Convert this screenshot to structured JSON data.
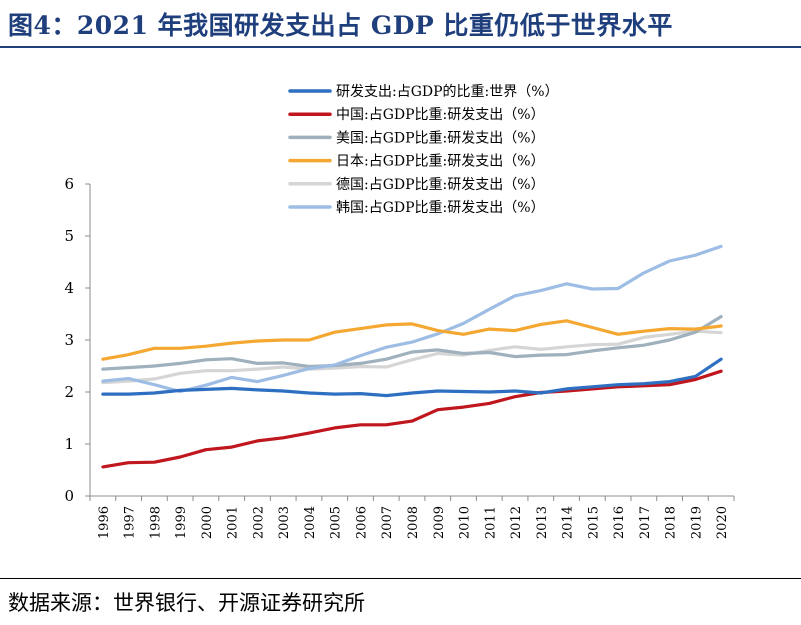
{
  "title": "图4：2021 年我国研发支出占 GDP 比重仍低于世界水平",
  "source": "数据来源：世界银行、开源证券研究所",
  "chart_data": {
    "type": "line",
    "x": [
      "1996",
      "1997",
      "1998",
      "1999",
      "2000",
      "2001",
      "2002",
      "2003",
      "2004",
      "2005",
      "2006",
      "2007",
      "2008",
      "2009",
      "2010",
      "2011",
      "2012",
      "2013",
      "2014",
      "2015",
      "2016",
      "2017",
      "2018",
      "2019",
      "2020"
    ],
    "ylim": [
      0,
      6
    ],
    "yticks": [
      "0",
      "1",
      "2",
      "3",
      "4",
      "5",
      "6"
    ],
    "grid": false,
    "legend_position": "top-center",
    "series": [
      {
        "name": "研发支出:占GDP的比重:世界（%）",
        "color": "#2e6fc2",
        "values": [
          1.96,
          1.96,
          1.98,
          2.03,
          2.05,
          2.07,
          2.04,
          2.02,
          1.98,
          1.96,
          1.97,
          1.93,
          1.98,
          2.02,
          2.01,
          2.0,
          2.02,
          1.98,
          2.06,
          2.1,
          2.14,
          2.16,
          2.2,
          2.3,
          2.63
        ]
      },
      {
        "name": "中国:占GDP比重:研发支出（%）",
        "color": "#c0161e",
        "values": [
          0.56,
          0.64,
          0.65,
          0.75,
          0.89,
          0.94,
          1.06,
          1.12,
          1.21,
          1.31,
          1.37,
          1.37,
          1.44,
          1.66,
          1.71,
          1.78,
          1.91,
          1.99,
          2.02,
          2.06,
          2.1,
          2.12,
          2.14,
          2.24,
          2.4
        ]
      },
      {
        "name": "美国:占GDP比重:研发支出（%）",
        "color": "#9eb1bd",
        "values": [
          2.44,
          2.47,
          2.5,
          2.55,
          2.62,
          2.64,
          2.55,
          2.56,
          2.49,
          2.51,
          2.55,
          2.63,
          2.77,
          2.81,
          2.74,
          2.76,
          2.68,
          2.71,
          2.72,
          2.79,
          2.85,
          2.9,
          3.0,
          3.15,
          3.45
        ]
      },
      {
        "name": "日本:占GDP比重:研发支出（%）",
        "color": "#f4a832",
        "values": [
          2.63,
          2.72,
          2.84,
          2.84,
          2.88,
          2.94,
          2.98,
          3.0,
          3.0,
          3.15,
          3.22,
          3.29,
          3.31,
          3.18,
          3.11,
          3.21,
          3.18,
          3.3,
          3.37,
          3.24,
          3.11,
          3.17,
          3.22,
          3.21,
          3.27
        ]
      },
      {
        "name": "德国:占GDP比重:研发支出（%）",
        "color": "#d5d5d5",
        "values": [
          2.18,
          2.21,
          2.25,
          2.36,
          2.41,
          2.41,
          2.44,
          2.48,
          2.44,
          2.46,
          2.49,
          2.48,
          2.62,
          2.74,
          2.71,
          2.8,
          2.87,
          2.82,
          2.87,
          2.91,
          2.92,
          3.05,
          3.11,
          3.17,
          3.14
        ]
      },
      {
        "name": "韩国:占GDP比重:研发支出（%）",
        "color": "#9dbde5",
        "values": [
          2.21,
          2.26,
          2.14,
          2.01,
          2.13,
          2.28,
          2.2,
          2.32,
          2.45,
          2.52,
          2.7,
          2.86,
          2.96,
          3.12,
          3.32,
          3.59,
          3.85,
          3.95,
          4.08,
          3.98,
          3.99,
          4.29,
          4.52,
          4.63,
          4.8
        ]
      }
    ]
  }
}
